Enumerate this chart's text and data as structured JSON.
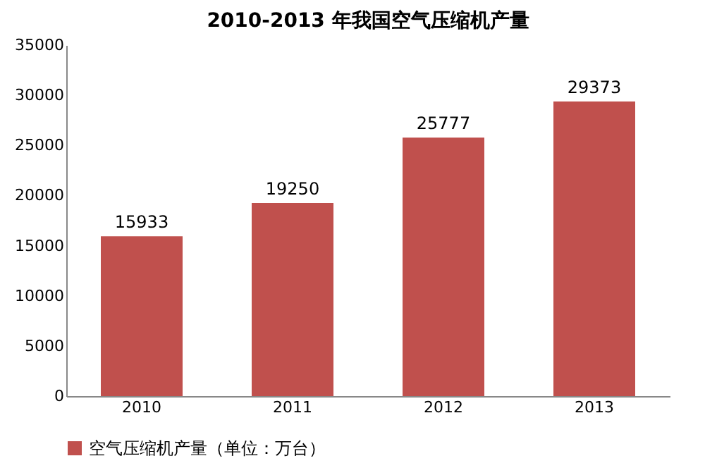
{
  "chart_data": {
    "type": "bar",
    "title": "2010-2013 年我国空气压缩机产量",
    "categories": [
      "2010",
      "2011",
      "2012",
      "2013"
    ],
    "series": [
      {
        "name": "空气压缩机产量（单位：万台）",
        "color": "#c0504d",
        "values": [
          15933,
          19250,
          25777,
          29373
        ]
      }
    ],
    "ylim": [
      0,
      35000
    ],
    "yticks": [
      0,
      5000,
      10000,
      15000,
      20000,
      25000,
      30000,
      35000
    ],
    "grid": false,
    "legend": "bottom",
    "data_labels": true
  }
}
